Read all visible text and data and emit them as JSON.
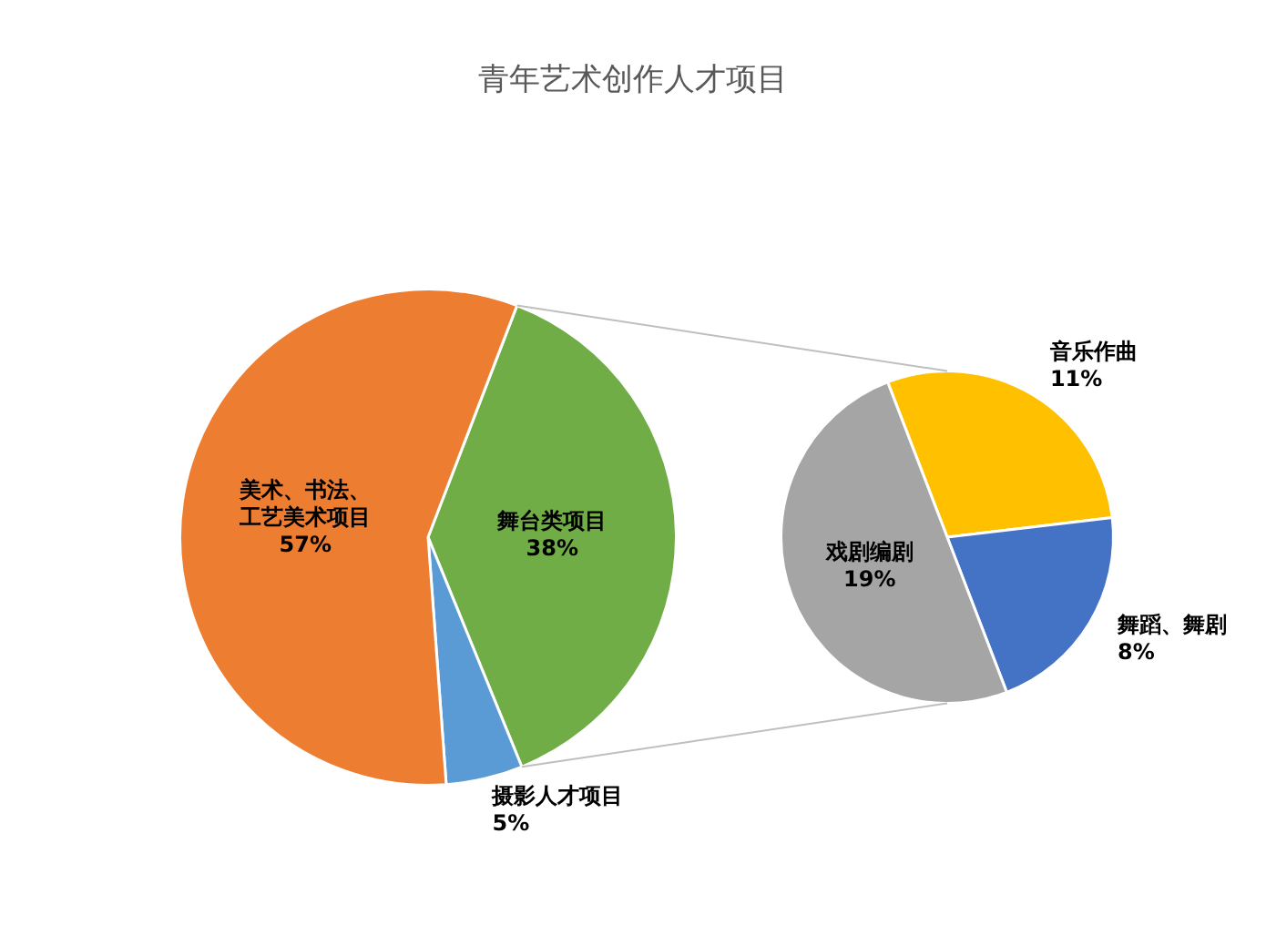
{
  "chart_data": [
    {
      "type": "pie",
      "title": "青年艺术创作人才项目",
      "categories": [
        "舞台类项目",
        "摄影人才项目",
        "美术、书法、工艺美术项目"
      ],
      "values": [
        38,
        5,
        57
      ],
      "value_labels": [
        "38%",
        "5%",
        "57%"
      ],
      "colors": [
        "#70ad47",
        "#5b9bd5",
        "#ed7d31"
      ],
      "legend": false
    },
    {
      "type": "pie",
      "categories": [
        "音乐作曲",
        "舞蹈、舞剧",
        "戏剧编剧"
      ],
      "values": [
        11,
        8,
        19
      ],
      "value_labels": [
        "11%",
        "8%",
        "19%"
      ],
      "colors": [
        "#ffc000",
        "#4472c4",
        "#a5a5a5"
      ],
      "legend": false
    }
  ]
}
